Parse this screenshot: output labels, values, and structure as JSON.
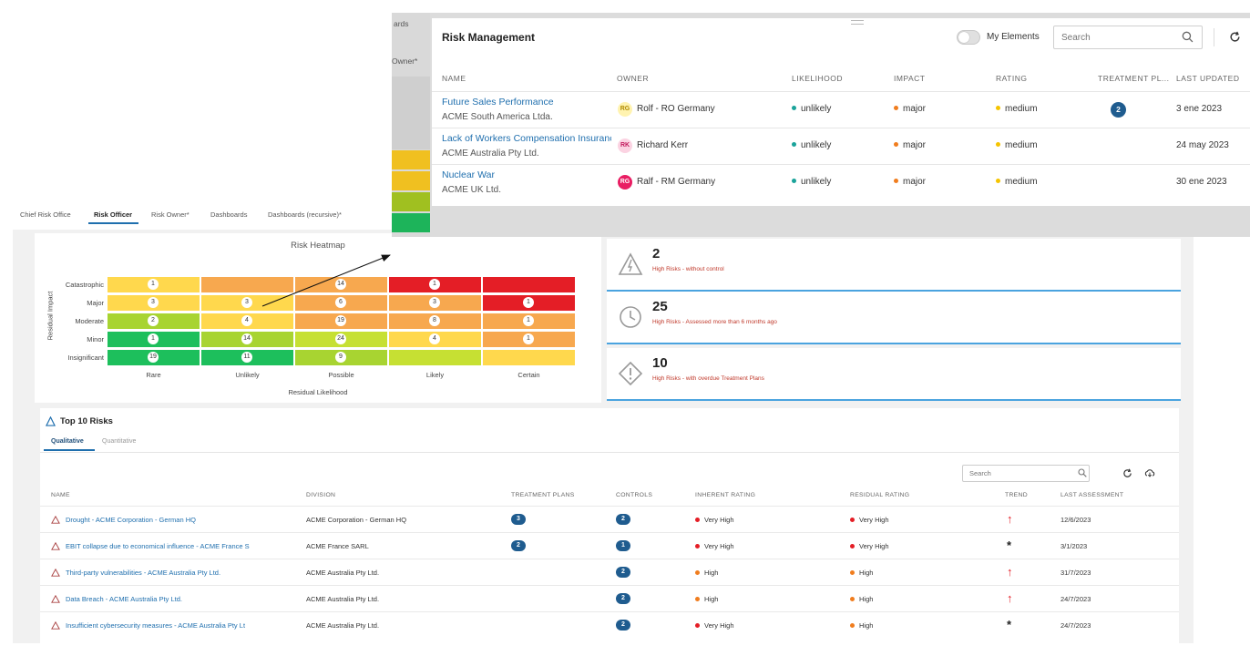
{
  "dashboard": {
    "tabs": [
      "Chief Risk Office",
      "Risk Officer",
      "Risk Owner*",
      "Dashboards",
      "Dashboards (recursive)*"
    ],
    "active_tab": "Risk Officer",
    "heatmap": {
      "title": "Risk Heatmap",
      "y_axis_label": "Residual Impact",
      "x_axis_label": "Residual Likelihood",
      "rows": [
        "Catastrophic",
        "Major",
        "Moderate",
        "Minor",
        "Insignificant"
      ],
      "cols": [
        "Rare",
        "Unlikely",
        "Possible",
        "Likely",
        "Certain"
      ],
      "cells": [
        [
          {
            "v": "1",
            "c": "#ffd84d"
          },
          {
            "v": "",
            "c": "#f7a84f"
          },
          {
            "v": "14",
            "c": "#f7a84f"
          },
          {
            "v": "1",
            "c": "#e41e26"
          },
          {
            "v": "",
            "c": "#e41e26"
          }
        ],
        [
          {
            "v": "3",
            "c": "#ffd84d"
          },
          {
            "v": "3",
            "c": "#ffd84d"
          },
          {
            "v": "6",
            "c": "#f7a84f"
          },
          {
            "v": "3",
            "c": "#f7a84f"
          },
          {
            "v": "1",
            "c": "#e41e26"
          }
        ],
        [
          {
            "v": "2",
            "c": "#a8d431"
          },
          {
            "v": "4",
            "c": "#ffd84d"
          },
          {
            "v": "19",
            "c": "#f7a84f"
          },
          {
            "v": "8",
            "c": "#f7a84f"
          },
          {
            "v": "1",
            "c": "#f7a84f"
          }
        ],
        [
          {
            "v": "1",
            "c": "#1dbf5c"
          },
          {
            "v": "14",
            "c": "#a8d431"
          },
          {
            "v": "24",
            "c": "#c6e033"
          },
          {
            "v": "4",
            "c": "#ffd84d"
          },
          {
            "v": "1",
            "c": "#f7a84f"
          }
        ],
        [
          {
            "v": "19",
            "c": "#1dbf5c"
          },
          {
            "v": "11",
            "c": "#1dbf5c"
          },
          {
            "v": "9",
            "c": "#a8d431"
          },
          {
            "v": "",
            "c": "#c6e033"
          },
          {
            "v": "",
            "c": "#ffd84d"
          }
        ]
      ]
    },
    "kpis": [
      {
        "value": "2",
        "label": "High Risks - without control",
        "icon": "warning-icon"
      },
      {
        "value": "25",
        "label": "High Risks - Assessed more than 6 months ago",
        "icon": "clock-icon"
      },
      {
        "value": "10",
        "label": "High Risks - with overdue Treatment Plans",
        "icon": "diamond-alert-icon"
      }
    ],
    "top10": {
      "title": "Top 10 Risks",
      "tabs": [
        "Qualitative",
        "Quantitative"
      ],
      "active_tab": "Qualitative",
      "search_placeholder": "Search",
      "headers": [
        "NAME",
        "DIVISION",
        "TREATMENT PLANS",
        "CONTROLS",
        "INHERENT RATING",
        "RESIDUAL RATING",
        "TREND",
        "LAST ASSESSMENT"
      ],
      "rows": [
        {
          "name": "Drought - ACME Corporation - German HQ",
          "division": "ACME Corporation - German HQ",
          "plans": "3",
          "controls": "2",
          "inherent": "Very High",
          "inherent_color": "#e41e26",
          "residual": "Very High",
          "residual_color": "#e41e26",
          "trend": "↑",
          "trend_color": "#e41e26",
          "last": "12/6/2023"
        },
        {
          "name": "EBIT collapse due to economical influence - ACME France S",
          "division": "ACME France SARL",
          "plans": "2",
          "controls": "1",
          "inherent": "Very High",
          "inherent_color": "#e41e26",
          "residual": "Very High",
          "residual_color": "#e41e26",
          "trend": "*",
          "trend_color": "#222222",
          "last": "3/1/2023"
        },
        {
          "name": "Third-party vulnerabilities - ACME Australia Pty Ltd.",
          "division": "ACME Australia Pty Ltd.",
          "plans": "",
          "controls": "2",
          "inherent": "High",
          "inherent_color": "#f07d1e",
          "residual": "High",
          "residual_color": "#f07d1e",
          "trend": "↑",
          "trend_color": "#e41e26",
          "last": "31/7/2023"
        },
        {
          "name": "Data Breach - ACME Australia Pty Ltd.",
          "division": "ACME Australia Pty Ltd.",
          "plans": "",
          "controls": "2",
          "inherent": "High",
          "inherent_color": "#f07d1e",
          "residual": "High",
          "residual_color": "#f07d1e",
          "trend": "↑",
          "trend_color": "#e41e26",
          "last": "24/7/2023"
        },
        {
          "name": "Insufficient cybersecurity measures - ACME Australia Pty Lt",
          "division": "ACME Australia Pty Ltd.",
          "plans": "",
          "controls": "2",
          "inherent": "Very High",
          "inherent_color": "#e41e26",
          "residual": "High",
          "residual_color": "#f07d1e",
          "trend": "*",
          "trend_color": "#222222",
          "last": "24/7/2023"
        }
      ]
    }
  },
  "overlay": {
    "left_texts": [
      "ards",
      "Owner*"
    ],
    "strip_colors": [
      "#f0c020",
      "#f0c020",
      "#a0c020",
      "#1db45a"
    ],
    "title": "Risk Management",
    "my_elements_label": "My Elements",
    "search_placeholder": "Search",
    "headers": [
      "NAME",
      "OWNER",
      "LIKELIHOOD",
      "IMPACT",
      "RATING",
      "TREATMENT PL...",
      "LAST UPDATED"
    ],
    "rows": [
      {
        "name": "Future Sales Performance",
        "division": "ACME South America Ltda.",
        "initials": "RG",
        "avatar_bg": "#fff3b0",
        "avatar_fg": "#b08a00",
        "owner": "Rolf - RO Germany",
        "likelihood": "unlikely",
        "impact": "major",
        "rating": "medium",
        "plans": "2",
        "updated": "3 ene 2023"
      },
      {
        "name": "Lack of Workers Compensation Insurance",
        "division": "ACME Australia Pty Ltd.",
        "initials": "RK",
        "avatar_bg": "#fbd3e2",
        "avatar_fg": "#c2185b",
        "owner": "Richard Kerr",
        "likelihood": "unlikely",
        "impact": "major",
        "rating": "medium",
        "plans": "",
        "updated": "24 may 2023"
      },
      {
        "name": "Nuclear War",
        "division": "ACME UK Ltd.",
        "initials": "RG",
        "avatar_bg": "#e91e63",
        "avatar_fg": "#ffffff",
        "owner": "Ralf - RM Germany",
        "likelihood": "unlikely",
        "impact": "major",
        "rating": "medium",
        "plans": "",
        "updated": "30 ene 2023"
      }
    ],
    "colors": {
      "likelihood": "#1aa39a",
      "impact": "#f07d1e",
      "rating": "#f5c400"
    }
  }
}
